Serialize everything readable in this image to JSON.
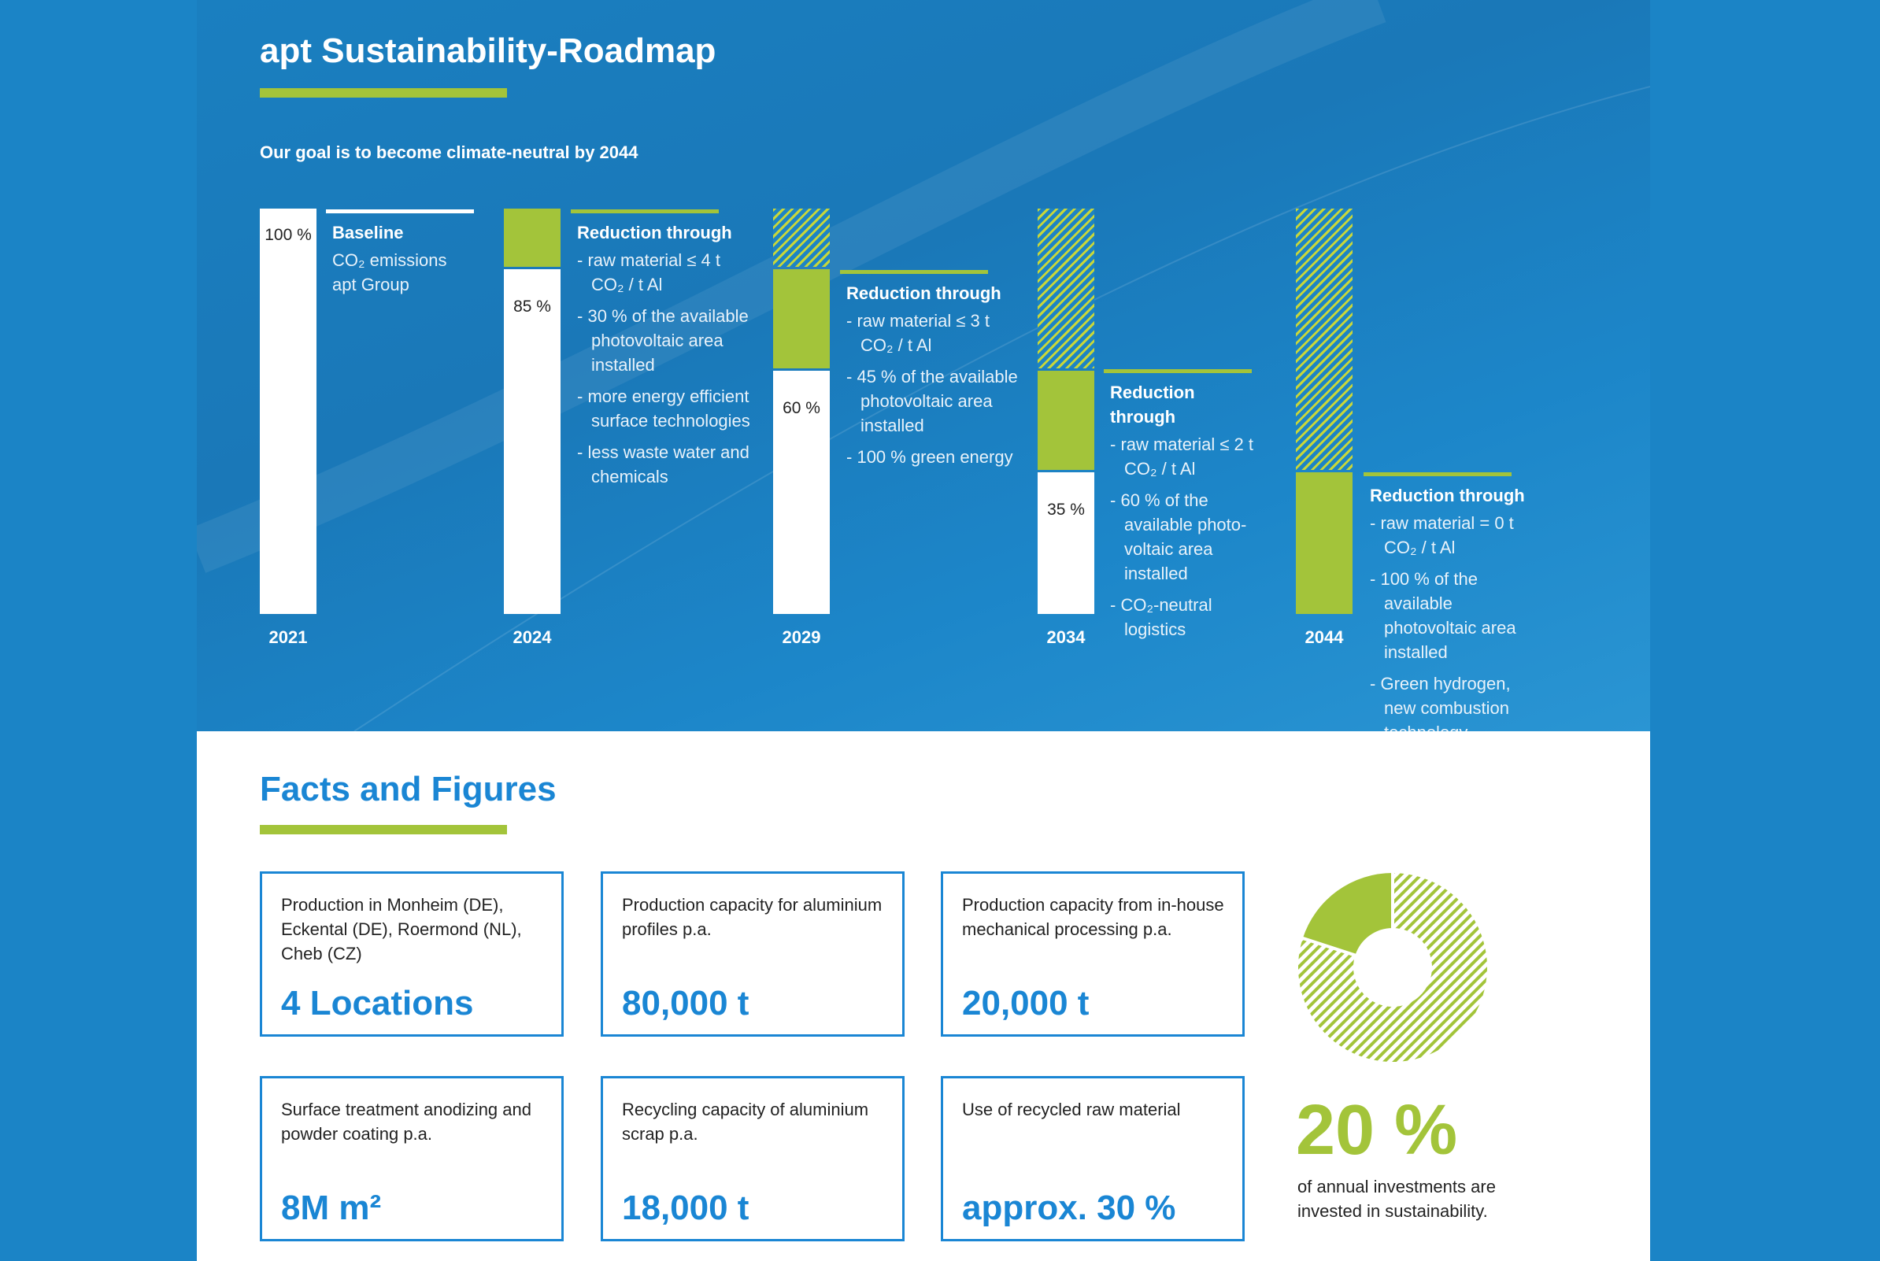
{
  "roadmap": {
    "title": "apt Sustainability-Roadmap",
    "subtitle": "Our goal is to become climate-neutral by 2044",
    "colors": {
      "accent_green": "#a3c43a",
      "blue": "#1a7fc0",
      "white": "#ffffff"
    },
    "stages": [
      {
        "year": "2021",
        "remaining_pct": 100,
        "reduced_pct": 0,
        "label": "100 %",
        "heading": "Baseline",
        "lines": [
          "CO₂ emissions",
          "apt Group"
        ],
        "items": []
      },
      {
        "year": "2024",
        "remaining_pct": 85,
        "reduced_pct": 15,
        "label": "85 %",
        "heading": "Reduction through",
        "items": [
          "raw material ≤ 4 t CO₂ / t Al",
          "30 % of the available photovoltaic area installed",
          "more energy efficient surface technologies",
          "less waste water and chemicals"
        ]
      },
      {
        "year": "2029",
        "remaining_pct": 60,
        "reduced_pct": 25,
        "label": "60 %",
        "heading": "Reduction through",
        "items": [
          "raw material ≤ 3 t CO₂ / t Al",
          "45 % of the available photovoltaic area installed",
          "100 % green energy"
        ]
      },
      {
        "year": "2034",
        "remaining_pct": 35,
        "reduced_pct": 25,
        "label": "35 %",
        "heading": "Reduction through",
        "items": [
          "raw material ≤ 2 t CO₂ / t Al",
          "60 % of the available photo-voltaic area installed",
          "CO₂-neutral logistics"
        ]
      },
      {
        "year": "2044",
        "remaining_pct": 0,
        "reduced_pct": 35,
        "label": "",
        "heading": "Reduction through",
        "items": [
          "raw material = 0 t CO₂ / t Al",
          "100 % of the available photovoltaic area installed",
          "Green hydrogen, new combustion technology"
        ]
      }
    ]
  },
  "facts": {
    "title": "Facts and Figures",
    "cards": [
      {
        "label": "Production in Monheim (DE), Eckental (DE), Roermond (NL), Cheb (CZ)",
        "value": "4 Locations"
      },
      {
        "label": "Production capacity for aluminium profiles p.a.",
        "value": "80,000 t"
      },
      {
        "label": "Production capacity from in-house mechanical processing p.a.",
        "value": "20,000 t"
      },
      {
        "label": "Surface treatment anodizing and powder coating p.a.",
        "value": "8M m²"
      },
      {
        "label": "Recycling capacity of aluminium scrap p.a.",
        "value": "18,000 t"
      },
      {
        "label": "Use of recycled raw material",
        "value": "approx. 30 %"
      }
    ],
    "investment": {
      "value": "20 %",
      "share_pct": 20,
      "caption": "of annual investments are invested in sustainability."
    }
  }
}
